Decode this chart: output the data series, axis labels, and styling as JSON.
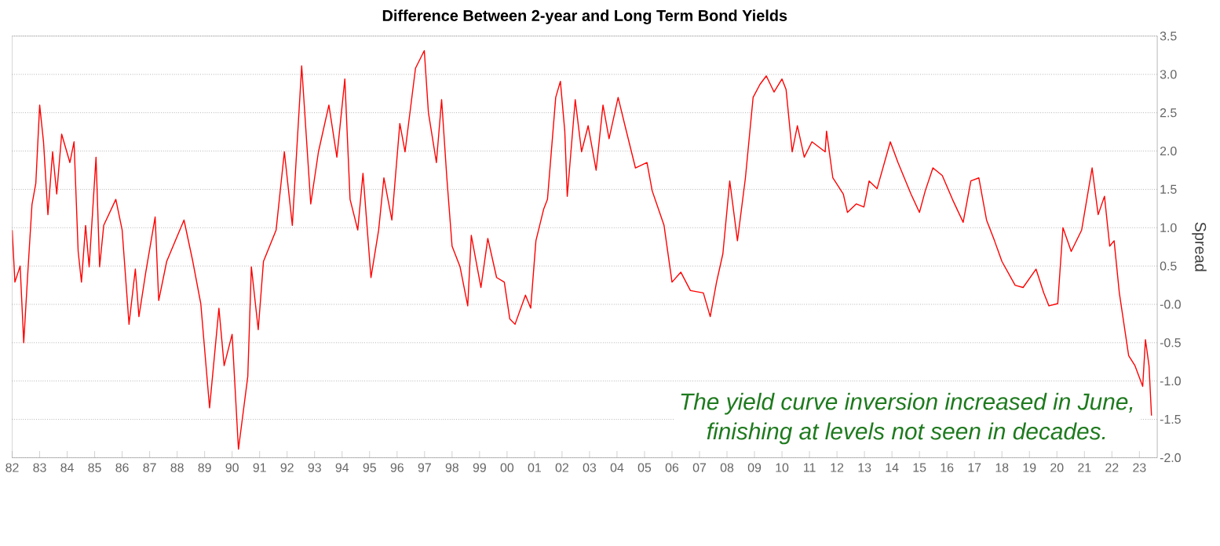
{
  "chart_data": {
    "type": "line",
    "title": "Difference Between 2-year and Long Term Bond Yields",
    "ylabel": "Spread",
    "annotations": [
      "The yield curve inversion increased in June,",
      "finishing at levels not seen in decades."
    ],
    "series": [
      {
        "color": "#ff0000",
        "values": [
          0.97,
          0.29,
          0.5,
          -0.5,
          0.42,
          1.3,
          1.58,
          2.6,
          2.12,
          1.17,
          1.99,
          1.44,
          2.22,
          1.85,
          2.12,
          0.69,
          0.29,
          1.03,
          0.49,
          1.92,
          0.49,
          1.03,
          1.37,
          0.97,
          -0.26,
          0.46,
          -0.16,
          0.42,
          1.14,
          0.05,
          0.56,
          0.8,
          1.1,
          0.56,
          0.01,
          -1.35,
          -0.05,
          -0.8,
          -0.39,
          -1.89,
          -0.94,
          0.49,
          -0.33,
          0.56,
          0.97,
          1.99,
          1.03,
          3.11,
          1.31,
          1.99,
          2.6,
          1.92,
          2.94,
          1.37,
          0.97,
          1.71,
          0.35,
          0.97,
          1.65,
          1.1,
          2.36,
          1.99,
          3.08,
          3.31,
          2.5,
          1.85,
          2.67,
          1.65,
          0.76,
          0.49,
          -0.02,
          0.9,
          0.22,
          0.86,
          0.35,
          0.29,
          -0.19,
          -0.26,
          0.12,
          -0.05,
          0.83,
          1.24,
          1.37,
          2.7,
          2.91,
          2.26,
          1.41,
          2.67,
          1.99,
          2.33,
          1.75,
          2.6,
          2.16,
          2.7,
          2.33,
          1.78,
          1.85,
          1.48,
          1.03,
          0.29,
          0.42,
          0.18,
          0.15,
          -0.16,
          0.29,
          0.66,
          1.61,
          0.83,
          1.65,
          2.7,
          2.87,
          2.98,
          2.77,
          2.94,
          2.8,
          1.99,
          2.33,
          1.92,
          2.12,
          1.99,
          2.26,
          1.65,
          1.44,
          1.2,
          1.31,
          1.27,
          1.61,
          1.51,
          2.12,
          1.85,
          1.44,
          1.2,
          1.48,
          1.78,
          1.68,
          1.37,
          1.07,
          1.61,
          1.65,
          1.1,
          0.83,
          0.56,
          0.25,
          0.22,
          0.46,
          0.15,
          -0.02,
          0.01,
          1.0,
          0.69,
          0.97,
          1.78,
          1.17,
          1.41,
          0.76,
          0.83,
          0.15,
          -0.67,
          -0.8,
          -1.07,
          -0.46,
          -0.8,
          -1.45
        ],
        "x": [
          1982.0,
          1982.1,
          1982.29,
          1982.42,
          1982.57,
          1982.72,
          1982.86,
          1983.0,
          1983.14,
          1983.3,
          1983.47,
          1983.62,
          1983.8,
          1984.1,
          1984.25,
          1984.4,
          1984.52,
          1984.67,
          1984.8,
          1985.05,
          1985.18,
          1985.33,
          1985.77,
          1986.0,
          1986.25,
          1986.48,
          1986.61,
          1986.86,
          1987.2,
          1987.33,
          1987.62,
          1987.9,
          1988.25,
          1988.57,
          1988.86,
          1989.18,
          1989.52,
          1989.71,
          1990.0,
          1990.23,
          1990.57,
          1990.7,
          1990.95,
          1991.14,
          1991.6,
          1991.9,
          1992.19,
          1992.53,
          1992.86,
          1993.14,
          1993.52,
          1993.81,
          1994.1,
          1994.29,
          1994.57,
          1994.76,
          1995.05,
          1995.33,
          1995.52,
          1995.81,
          1996.1,
          1996.29,
          1996.67,
          1996.99,
          1997.14,
          1997.43,
          1997.62,
          1997.81,
          1998.0,
          1998.29,
          1998.57,
          1998.7,
          1999.05,
          1999.3,
          1999.62,
          1999.9,
          2000.1,
          2000.29,
          2000.67,
          2000.86,
          2001.05,
          2001.33,
          2001.47,
          2001.77,
          2001.94,
          2002.1,
          2002.19,
          2002.48,
          2002.71,
          2002.95,
          2003.24,
          2003.49,
          2003.71,
          2004.04,
          2004.29,
          2004.67,
          2005.09,
          2005.28,
          2005.71,
          2006.0,
          2006.32,
          2006.67,
          2007.14,
          2007.39,
          2007.62,
          2007.85,
          2008.1,
          2008.38,
          2008.67,
          2008.95,
          2009.2,
          2009.43,
          2009.71,
          2010.0,
          2010.15,
          2010.37,
          2010.56,
          2010.81,
          2011.09,
          2011.57,
          2011.62,
          2011.85,
          2012.23,
          2012.38,
          2012.7,
          2012.98,
          2013.17,
          2013.46,
          2013.94,
          2014.22,
          2014.69,
          2015.0,
          2015.21,
          2015.49,
          2015.83,
          2016.2,
          2016.59,
          2016.87,
          2017.16,
          2017.44,
          2017.73,
          2018.0,
          2018.48,
          2018.77,
          2019.24,
          2019.52,
          2019.71,
          2020.03,
          2020.22,
          2020.52,
          2020.9,
          2021.28,
          2021.5,
          2021.73,
          2021.92,
          2022.08,
          2022.27,
          2022.61,
          2022.84,
          2023.12,
          2023.22,
          2023.35,
          2023.44
        ]
      }
    ],
    "xlim": [
      1982,
      2023.65
    ],
    "ylim": [
      -2.0,
      3.5
    ],
    "xticks": [
      {
        "value": 1982,
        "label": "82"
      },
      {
        "value": 1983,
        "label": "83"
      },
      {
        "value": 1984,
        "label": "84"
      },
      {
        "value": 1985,
        "label": "85"
      },
      {
        "value": 1986,
        "label": "86"
      },
      {
        "value": 1987,
        "label": "87"
      },
      {
        "value": 1988,
        "label": "88"
      },
      {
        "value": 1989,
        "label": "89"
      },
      {
        "value": 1990,
        "label": "90"
      },
      {
        "value": 1991,
        "label": "91"
      },
      {
        "value": 1992,
        "label": "92"
      },
      {
        "value": 1993,
        "label": "93"
      },
      {
        "value": 1994,
        "label": "94"
      },
      {
        "value": 1995,
        "label": "95"
      },
      {
        "value": 1996,
        "label": "96"
      },
      {
        "value": 1997,
        "label": "97"
      },
      {
        "value": 1998,
        "label": "98"
      },
      {
        "value": 1999,
        "label": "99"
      },
      {
        "value": 2000,
        "label": "00"
      },
      {
        "value": 2001,
        "label": "01"
      },
      {
        "value": 2002,
        "label": "02"
      },
      {
        "value": 2003,
        "label": "03"
      },
      {
        "value": 2004,
        "label": "04"
      },
      {
        "value": 2005,
        "label": "05"
      },
      {
        "value": 2006,
        "label": "06"
      },
      {
        "value": 2007,
        "label": "07"
      },
      {
        "value": 2008,
        "label": "08"
      },
      {
        "value": 2009,
        "label": "09"
      },
      {
        "value": 2010,
        "label": "10"
      },
      {
        "value": 2011,
        "label": "11"
      },
      {
        "value": 2012,
        "label": "12"
      },
      {
        "value": 2013,
        "label": "13"
      },
      {
        "value": 2014,
        "label": "14"
      },
      {
        "value": 2015,
        "label": "15"
      },
      {
        "value": 2016,
        "label": "16"
      },
      {
        "value": 2017,
        "label": "17"
      },
      {
        "value": 2018,
        "label": "18"
      },
      {
        "value": 2019,
        "label": "19"
      },
      {
        "value": 2020,
        "label": "20"
      },
      {
        "value": 2021,
        "label": "21"
      },
      {
        "value": 2022,
        "label": "22"
      },
      {
        "value": 2023,
        "label": "23"
      }
    ],
    "yticks": [
      {
        "value": -2.0,
        "label": "-2.0"
      },
      {
        "value": -1.5,
        "label": "-1.5"
      },
      {
        "value": -1.0,
        "label": "-1.0"
      },
      {
        "value": -0.5,
        "label": "-0.5"
      },
      {
        "value": 0,
        "label": "-0.0"
      },
      {
        "value": 0.5,
        "label": "0.5"
      },
      {
        "value": 1.0,
        "label": "1.0"
      },
      {
        "value": 1.5,
        "label": "1.5"
      },
      {
        "value": 2.0,
        "label": "2.0"
      },
      {
        "value": 2.5,
        "label": "2.5"
      },
      {
        "value": 3.0,
        "label": "3.0"
      },
      {
        "value": 3.5,
        "label": "3.5"
      }
    ],
    "grid": "y",
    "legend": false,
    "marker": "none",
    "line_style": "solid"
  }
}
